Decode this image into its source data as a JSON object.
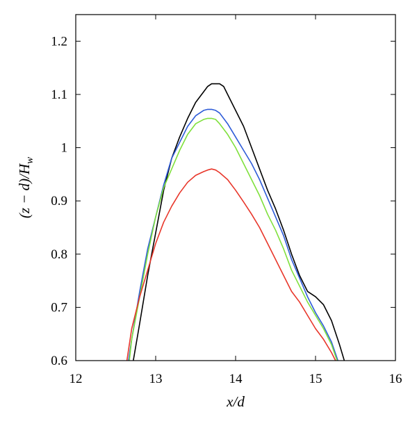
{
  "chart_data": {
    "type": "line",
    "xlabel": "x/d",
    "ylabel": "(z − d)/H_w",
    "xlim": [
      12,
      16
    ],
    "ylim": [
      0.6,
      1.25
    ],
    "xticks": [
      12,
      13,
      14,
      15,
      16
    ],
    "yticks": [
      0.6,
      0.7,
      0.8,
      0.9,
      1,
      1.1,
      1.2
    ],
    "xtick_labels": [
      "12",
      "13",
      "14",
      "15",
      "16"
    ],
    "ytick_labels": [
      "0.6",
      "0.7",
      "0.8",
      "0.9",
      "1",
      "1.1",
      "1.2"
    ],
    "grid": false,
    "legend": "none",
    "series": [
      {
        "color": "#000000",
        "x": [
          12.72,
          12.8,
          12.9,
          13.0,
          13.1,
          13.2,
          13.3,
          13.4,
          13.5,
          13.6,
          13.65,
          13.7,
          13.75,
          13.8,
          13.85,
          13.9,
          14.0,
          14.1,
          14.2,
          14.3,
          14.4,
          14.5,
          14.6,
          14.7,
          14.8,
          14.9,
          15.0,
          15.1,
          15.2,
          15.3,
          15.36
        ],
        "y": [
          0.6,
          0.67,
          0.76,
          0.84,
          0.92,
          0.98,
          1.02,
          1.055,
          1.085,
          1.105,
          1.115,
          1.12,
          1.12,
          1.12,
          1.115,
          1.1,
          1.07,
          1.04,
          1.0,
          0.96,
          0.92,
          0.885,
          0.845,
          0.8,
          0.76,
          0.73,
          0.72,
          0.705,
          0.675,
          0.63,
          0.6
        ]
      },
      {
        "color": "#2d5bd8",
        "x": [
          12.66,
          12.7,
          12.8,
          12.9,
          13.0,
          13.1,
          13.2,
          13.3,
          13.4,
          13.5,
          13.6,
          13.65,
          13.7,
          13.75,
          13.8,
          13.9,
          14.0,
          14.1,
          14.2,
          14.3,
          14.4,
          14.5,
          14.6,
          14.7,
          14.8,
          14.9,
          15.0,
          15.1,
          15.2,
          15.28
        ],
        "y": [
          0.6,
          0.64,
          0.73,
          0.81,
          0.87,
          0.93,
          0.98,
          1.01,
          1.04,
          1.06,
          1.07,
          1.072,
          1.072,
          1.07,
          1.065,
          1.045,
          1.02,
          0.995,
          0.97,
          0.94,
          0.905,
          0.87,
          0.835,
          0.79,
          0.755,
          0.72,
          0.69,
          0.665,
          0.635,
          0.6
        ]
      },
      {
        "color": "#7fe03c",
        "x": [
          12.67,
          12.7,
          12.8,
          12.9,
          13.0,
          13.1,
          13.2,
          13.3,
          13.4,
          13.5,
          13.6,
          13.65,
          13.7,
          13.75,
          13.8,
          13.9,
          14.0,
          14.1,
          14.2,
          14.3,
          14.4,
          14.5,
          14.6,
          14.7,
          14.8,
          14.9,
          15.0,
          15.1,
          15.2,
          15.27
        ],
        "y": [
          0.6,
          0.64,
          0.72,
          0.8,
          0.87,
          0.925,
          0.96,
          0.995,
          1.025,
          1.045,
          1.053,
          1.055,
          1.055,
          1.053,
          1.045,
          1.025,
          1.0,
          0.97,
          0.94,
          0.91,
          0.875,
          0.845,
          0.81,
          0.77,
          0.74,
          0.71,
          0.685,
          0.66,
          0.63,
          0.6
        ]
      },
      {
        "color": "#e8362a",
        "x": [
          12.64,
          12.7,
          12.8,
          12.9,
          13.0,
          13.1,
          13.2,
          13.3,
          13.4,
          13.5,
          13.6,
          13.65,
          13.7,
          13.75,
          13.8,
          13.9,
          14.0,
          14.1,
          14.2,
          14.3,
          14.4,
          14.5,
          14.6,
          14.7,
          14.8,
          14.9,
          15.0,
          15.1,
          15.2,
          15.25
        ],
        "y": [
          0.6,
          0.66,
          0.72,
          0.77,
          0.82,
          0.86,
          0.89,
          0.915,
          0.935,
          0.948,
          0.955,
          0.958,
          0.96,
          0.958,
          0.953,
          0.94,
          0.92,
          0.898,
          0.875,
          0.85,
          0.82,
          0.79,
          0.76,
          0.73,
          0.71,
          0.685,
          0.66,
          0.64,
          0.615,
          0.6
        ]
      }
    ]
  }
}
